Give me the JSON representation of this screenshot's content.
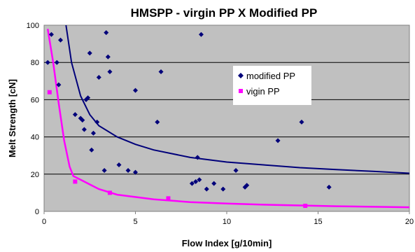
{
  "chart_data": {
    "type": "scatter",
    "title": "HMSPP - virgin PP X Modified PP",
    "xlabel": "Flow Index [g/10min]",
    "ylabel": "Melt Strength [cN]",
    "xlim": [
      0,
      20
    ],
    "ylim": [
      0,
      100
    ],
    "xticks": [
      "0",
      "5",
      "10",
      "15",
      "20"
    ],
    "yticks": [
      "0",
      "20",
      "40",
      "60",
      "80",
      "100"
    ],
    "grid": "horizontal",
    "legend_position": "center-right",
    "background": "#c0c0c0",
    "series": [
      {
        "name": "modified PP",
        "color": "#00007a",
        "marker": "diamond",
        "points": [
          [
            0.2,
            80
          ],
          [
            0.4,
            95
          ],
          [
            0.7,
            80
          ],
          [
            0.8,
            68
          ],
          [
            0.9,
            92
          ],
          [
            1.7,
            52
          ],
          [
            2.0,
            50
          ],
          [
            2.1,
            49
          ],
          [
            2.2,
            44
          ],
          [
            2.3,
            60
          ],
          [
            2.4,
            61
          ],
          [
            2.5,
            85
          ],
          [
            2.6,
            33
          ],
          [
            2.7,
            42
          ],
          [
            2.9,
            48
          ],
          [
            3.0,
            72
          ],
          [
            3.3,
            22
          ],
          [
            3.4,
            96
          ],
          [
            3.5,
            83
          ],
          [
            3.6,
            75
          ],
          [
            4.1,
            25
          ],
          [
            4.6,
            22
          ],
          [
            5.0,
            65
          ],
          [
            5.0,
            21
          ],
          [
            6.2,
            48
          ],
          [
            6.4,
            75
          ],
          [
            8.1,
            15
          ],
          [
            8.3,
            16
          ],
          [
            8.4,
            29
          ],
          [
            8.5,
            17
          ],
          [
            8.6,
            95
          ],
          [
            8.9,
            12
          ],
          [
            9.3,
            15
          ],
          [
            9.8,
            12
          ],
          [
            10.5,
            22
          ],
          [
            11.0,
            13
          ],
          [
            11.1,
            14
          ],
          [
            12.8,
            38
          ],
          [
            14.1,
            48
          ],
          [
            15.6,
            13
          ]
        ],
        "trendline": [
          [
            1.2,
            100
          ],
          [
            1.5,
            80
          ],
          [
            2.0,
            62
          ],
          [
            2.5,
            52
          ],
          [
            3.0,
            46
          ],
          [
            4.0,
            40
          ],
          [
            5.0,
            36
          ],
          [
            6.0,
            33
          ],
          [
            8.0,
            29
          ],
          [
            10.0,
            26.5
          ],
          [
            12.0,
            25
          ],
          [
            14.0,
            23.5
          ],
          [
            16.0,
            22.5
          ],
          [
            18.0,
            21.5
          ],
          [
            20.0,
            20.5
          ]
        ]
      },
      {
        "name": "vigin PP",
        "color": "#ff00ff",
        "marker": "square",
        "points": [
          [
            0.3,
            64
          ],
          [
            1.7,
            16
          ],
          [
            3.6,
            10
          ],
          [
            6.8,
            7
          ],
          [
            14.3,
            3
          ]
        ],
        "trendline": [
          [
            0.2,
            98
          ],
          [
            0.5,
            80
          ],
          [
            0.8,
            58
          ],
          [
            1.1,
            38
          ],
          [
            1.4,
            24
          ],
          [
            1.6,
            19
          ],
          [
            2.0,
            17
          ],
          [
            3.0,
            12
          ],
          [
            4.0,
            9
          ],
          [
            6.0,
            6.5
          ],
          [
            8.0,
            5
          ],
          [
            10.0,
            4.2
          ],
          [
            12.0,
            3.6
          ],
          [
            14.0,
            3.2
          ],
          [
            16.0,
            2.8
          ],
          [
            18.0,
            2.5
          ],
          [
            20.0,
            2.2
          ]
        ]
      }
    ]
  }
}
